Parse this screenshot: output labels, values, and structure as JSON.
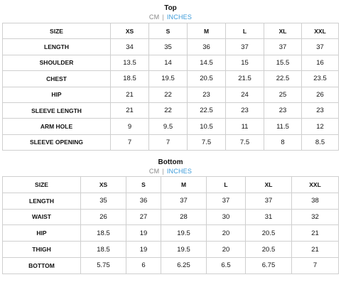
{
  "top": {
    "title": "Top",
    "units": {
      "cm": "CM",
      "sep": "|",
      "inches": "INCHES",
      "active": "inches"
    },
    "headers": [
      "SIZE",
      "XS",
      "S",
      "M",
      "L",
      "XL",
      "XXL"
    ],
    "rows": [
      {
        "label": "LENGTH",
        "values": [
          "34",
          "35",
          "36",
          "37",
          "37",
          "37"
        ]
      },
      {
        "label": "SHOULDER",
        "values": [
          "13.5",
          "14",
          "14.5",
          "15",
          "15.5",
          "16"
        ]
      },
      {
        "label": "CHEST",
        "values": [
          "18.5",
          "19.5",
          "20.5",
          "21.5",
          "22.5",
          "23.5"
        ]
      },
      {
        "label": "HIP",
        "values": [
          "21",
          "22",
          "23",
          "24",
          "25",
          "26"
        ]
      },
      {
        "label": "SLEEVE LENGTH",
        "values": [
          "21",
          "22",
          "22.5",
          "23",
          "23",
          "23"
        ]
      },
      {
        "label": "ARM HOLE",
        "values": [
          "9",
          "9.5",
          "10.5",
          "11",
          "11.5",
          "12"
        ]
      },
      {
        "label": "SLEEVE OPENING",
        "values": [
          "7",
          "7",
          "7.5",
          "7.5",
          "8",
          "8.5"
        ]
      }
    ]
  },
  "bottom": {
    "title": "Bottom",
    "units": {
      "cm": "CM",
      "sep": "|",
      "inches": "INCHES",
      "active": "inches"
    },
    "headers": [
      "SIZE",
      "XS",
      "S",
      "M",
      "L",
      "XL",
      "XXL"
    ],
    "rows": [
      {
        "label": "LENGTH",
        "values": [
          "35",
          "36",
          "37",
          "37",
          "37",
          "38"
        ]
      },
      {
        "label": "WAIST",
        "values": [
          "26",
          "27",
          "28",
          "30",
          "31",
          "32"
        ]
      },
      {
        "label": "HIP",
        "values": [
          "18.5",
          "19",
          "19.5",
          "20",
          "20.5",
          "21"
        ]
      },
      {
        "label": "THIGH",
        "values": [
          "18.5",
          "19",
          "19.5",
          "20",
          "20.5",
          "21"
        ]
      },
      {
        "label": "BOTTOM",
        "values": [
          "5.75",
          "6",
          "6.25",
          "6.5",
          "6.75",
          "7"
        ]
      }
    ]
  }
}
